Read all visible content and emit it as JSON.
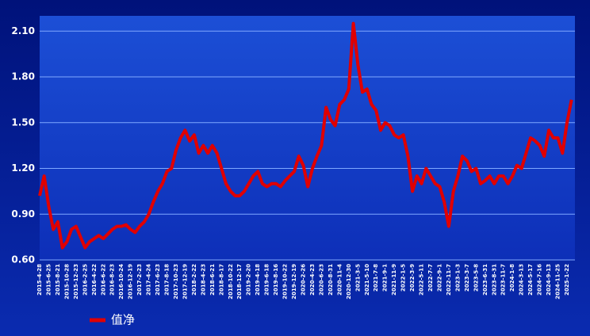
{
  "chart_data": {
    "type": "line",
    "categories": [
      "2015-4-28",
      null,
      "2015-6-25",
      null,
      "2015-8-21",
      null,
      "2015-10-28",
      null,
      "2015-12-23",
      null,
      "2016-2-25",
      null,
      "2016-4-22",
      null,
      "2016-6-22",
      null,
      "2016-8-23",
      null,
      "2016-10-24",
      null,
      "2016-12-19",
      null,
      "2017-2-23",
      null,
      "2017-4-24",
      null,
      "2017-6-23",
      null,
      "2017-8-18",
      null,
      "2017-10-23",
      null,
      "2017-12-19",
      null,
      "2018-2-22",
      null,
      "2018-4-23",
      null,
      "2018-6-21",
      null,
      "2018-8-17",
      null,
      "2018-10-22",
      null,
      "2018-12-17",
      null,
      "2019-2-20",
      null,
      "2019-4-18",
      null,
      "2019-6-18",
      null,
      "2019-8-16",
      null,
      "2019-10-22",
      null,
      "2019-12-19",
      null,
      "2020-2-26",
      null,
      "2020-4-23",
      null,
      "2020-6-23",
      null,
      "2020-8-31",
      null,
      "2020-11-4",
      null,
      "2020-12-30",
      null,
      "2021-3-5",
      null,
      "2021-5-10",
      null,
      "2021-7-8",
      null,
      "2021-9-1",
      null,
      "2021-11-9",
      null,
      "2022-1-5",
      null,
      "2022-3-9",
      null,
      "2022-5-11",
      null,
      "2022-7-7",
      null,
      "2022-9-1",
      null,
      "2022-11-7",
      null,
      "2023-1-3",
      null,
      "2023-3-7",
      null,
      "2023-5-8",
      null,
      "2023-6-31",
      null,
      "2023-8-31",
      null,
      "2023-11-7",
      null,
      "2024-1-8",
      null,
      "2024-3-13",
      null,
      "2024-5-17",
      null,
      "2024-7-16",
      null,
      "2024-9-13",
      null,
      "2024-11-25",
      null,
      "2025-1-22",
      null
    ],
    "series": [
      {
        "name": "值净",
        "color": "#e00000",
        "values": [
          1.02,
          1.15,
          0.95,
          0.8,
          0.85,
          0.68,
          0.72,
          0.8,
          0.82,
          0.75,
          0.68,
          0.72,
          0.74,
          0.76,
          0.74,
          0.77,
          0.8,
          0.82,
          0.82,
          0.83,
          0.8,
          0.78,
          0.82,
          0.85,
          0.9,
          0.98,
          1.05,
          1.1,
          1.18,
          1.2,
          1.32,
          1.4,
          1.45,
          1.38,
          1.42,
          1.3,
          1.35,
          1.3,
          1.35,
          1.3,
          1.2,
          1.1,
          1.05,
          1.02,
          1.02,
          1.05,
          1.1,
          1.15,
          1.18,
          1.1,
          1.08,
          1.1,
          1.1,
          1.08,
          1.12,
          1.15,
          1.18,
          1.28,
          1.22,
          1.08,
          1.2,
          1.28,
          1.35,
          1.6,
          1.52,
          1.48,
          1.62,
          1.65,
          1.72,
          2.15,
          1.88,
          1.7,
          1.72,
          1.62,
          1.58,
          1.45,
          1.5,
          1.48,
          1.42,
          1.4,
          1.42,
          1.28,
          1.05,
          1.15,
          1.1,
          1.2,
          1.15,
          1.1,
          1.08,
          0.98,
          0.82,
          1.05,
          1.15,
          1.28,
          1.25,
          1.18,
          1.2,
          1.1,
          1.12,
          1.15,
          1.1,
          1.15,
          1.15,
          1.1,
          1.15,
          1.22,
          1.2,
          1.3,
          1.4,
          1.38,
          1.35,
          1.28,
          1.45,
          1.4,
          1.4,
          1.3,
          1.5,
          1.65
        ]
      }
    ],
    "ylim": [
      0.6,
      2.2
    ],
    "yticks": [
      {
        "value": 0.6,
        "label": "0.60"
      },
      {
        "value": 0.9,
        "label": "0.90"
      },
      {
        "value": 1.2,
        "label": "1.20"
      },
      {
        "value": 1.5,
        "label": "1.50"
      },
      {
        "value": 1.8,
        "label": "1.80"
      },
      {
        "value": 2.1,
        "label": "2.10"
      }
    ],
    "grid": true,
    "legend": "bottom-left"
  }
}
